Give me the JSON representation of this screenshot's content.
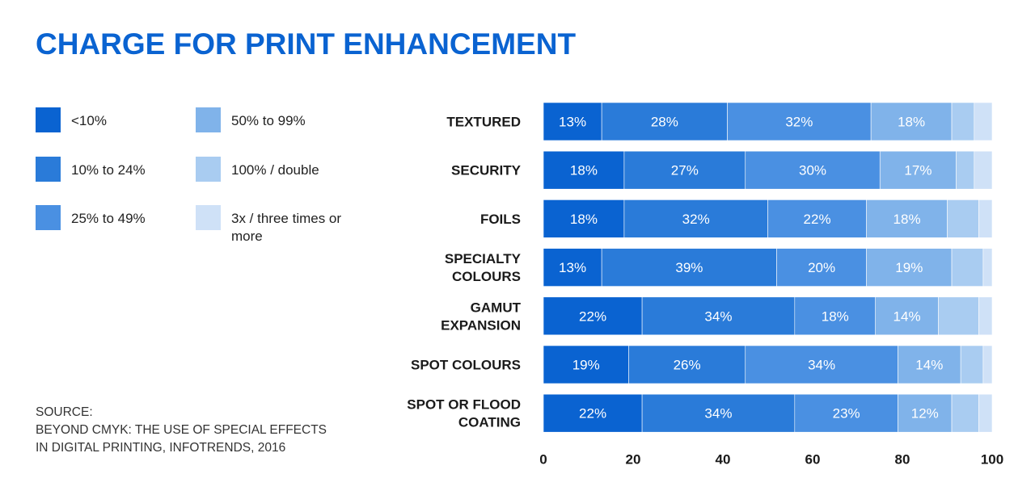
{
  "title": "CHARGE FOR PRINT ENHANCEMENT",
  "legend": [
    {
      "label": "<10%",
      "color": "#0a63d1"
    },
    {
      "label": "10% to 24%",
      "color": "#2a7bd9"
    },
    {
      "label": "25% to 49%",
      "color": "#4a90e2"
    },
    {
      "label": "50% to 99%",
      "color": "#80b3ea"
    },
    {
      "label": "100% / double",
      "color": "#a9ccf1"
    },
    {
      "label": "3x / three times or more",
      "color": "#cfe1f7"
    }
  ],
  "source": {
    "lines": [
      "SOURCE:",
      "BEYOND CMYK: THE USE OF SPECIAL EFFECTS",
      "IN DIGITAL PRINTING, INFOTRENDS, 2016"
    ]
  },
  "chart_data": {
    "type": "bar",
    "orientation": "horizontal",
    "stacked": true,
    "categories": [
      [
        "TEXTURED"
      ],
      [
        "SECURITY"
      ],
      [
        "FOILS"
      ],
      [
        "SPECIALTY",
        "COLOURS"
      ],
      [
        "GAMUT",
        "EXPANSION"
      ],
      [
        "SPOT COLOURS"
      ],
      [
        "SPOT OR FLOOD",
        "COATING"
      ]
    ],
    "series": [
      {
        "name": "<10%",
        "color": "#0a63d1",
        "values": [
          13,
          18,
          18,
          13,
          22,
          19,
          22
        ]
      },
      {
        "name": "10% to 24%",
        "color": "#2a7bd9",
        "values": [
          28,
          27,
          32,
          39,
          34,
          26,
          34
        ]
      },
      {
        "name": "25% to 49%",
        "color": "#4a90e2",
        "values": [
          32,
          30,
          22,
          20,
          18,
          34,
          23
        ]
      },
      {
        "name": "50% to 99%",
        "color": "#80b3ea",
        "values": [
          18,
          17,
          18,
          19,
          14,
          14,
          12
        ]
      },
      {
        "name": "100% / double",
        "color": "#a9ccf1",
        "values": [
          5,
          4,
          7,
          7,
          9,
          5,
          6
        ]
      },
      {
        "name": "3x / three times or more",
        "color": "#cfe1f7",
        "values": [
          4,
          4,
          3,
          2,
          3,
          2,
          3
        ]
      }
    ],
    "data_labels": [
      [
        "13%",
        "28%",
        "32%",
        "18%",
        "",
        ""
      ],
      [
        "18%",
        "27%",
        "30%",
        "17%",
        "",
        ""
      ],
      [
        "18%",
        "32%",
        "22%",
        "18%",
        "",
        ""
      ],
      [
        "13%",
        "39%",
        "20%",
        "19%",
        "",
        ""
      ],
      [
        "22%",
        "34%",
        "18%",
        "14%",
        "",
        ""
      ],
      [
        "19%",
        "26%",
        "34%",
        "14%",
        "",
        ""
      ],
      [
        "22%",
        "34%",
        "23%",
        "12%",
        "",
        ""
      ]
    ],
    "xlim": [
      0,
      100
    ],
    "xticks": [
      "0",
      "20",
      "40",
      "60",
      "80",
      "100"
    ],
    "grid": false,
    "legend_position": "left"
  }
}
